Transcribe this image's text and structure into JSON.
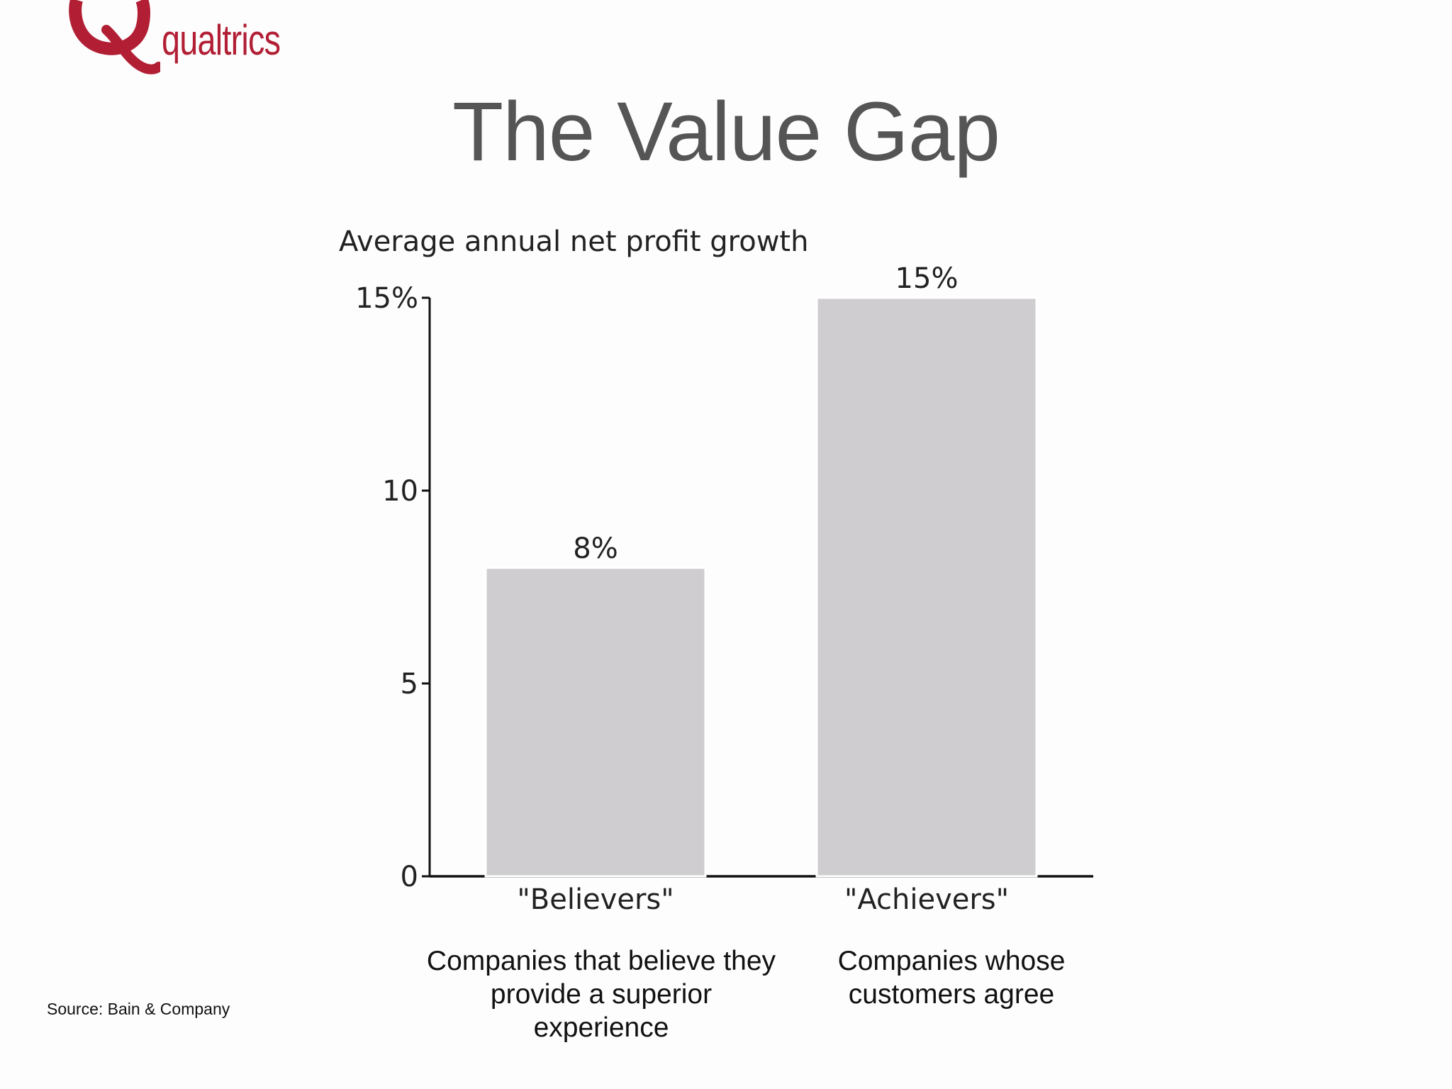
{
  "brand": {
    "name": "qualtrics",
    "color": "#b21f35",
    "icon": "q-logo-icon"
  },
  "slide": {
    "title": "The Value Gap",
    "source": "Source: Bain & Company"
  },
  "chart_data": {
    "type": "bar",
    "title": "Average annual net profit growth",
    "categories": [
      "\"Believers\"",
      "\"Achievers\""
    ],
    "category_descriptions": [
      "Companies that believe they provide a superior experience",
      "Companies whose customers agree"
    ],
    "values": [
      8,
      15
    ],
    "data_labels": [
      "8%",
      "15%"
    ],
    "xlabel": "",
    "ylabel": "",
    "ylim": [
      0,
      15
    ],
    "yticks": [
      {
        "value": 0,
        "label": "0"
      },
      {
        "value": 5,
        "label": "5"
      },
      {
        "value": 10,
        "label": "10"
      },
      {
        "value": 15,
        "label": "15%"
      }
    ],
    "bar_color": "#cfcdd0",
    "grid": false,
    "legend": "none"
  }
}
